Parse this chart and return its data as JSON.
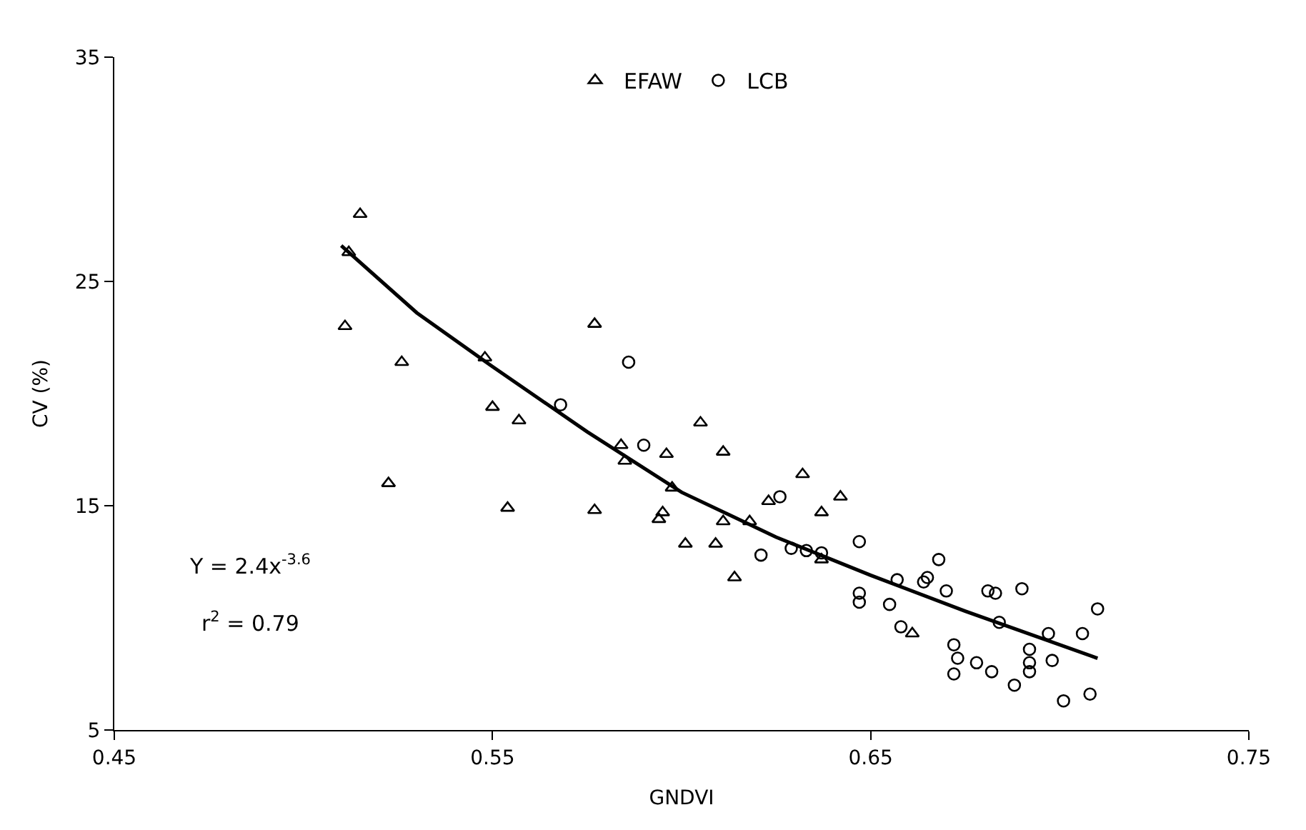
{
  "chart_data": {
    "type": "scatter",
    "xlabel": "GNDVI",
    "ylabel": "CV (%)",
    "xlim": [
      0.45,
      0.75
    ],
    "xticks": [
      0.45,
      0.55,
      0.65,
      0.75
    ],
    "ylim": [
      5,
      35
    ],
    "yticks": [
      5,
      15,
      25,
      35
    ],
    "legend": "top",
    "annotations": [
      "Y = 2.4x$^{-3.6}$",
      "r$^{2}$ = 0.79"
    ],
    "series": [
      {
        "name": "EFAW",
        "color": "#000000",
        "marker": "triangle",
        "x": [
          0.512,
          0.515,
          0.511,
          0.526,
          0.5225,
          0.548,
          0.55,
          0.557,
          0.554,
          0.577,
          0.577,
          0.584,
          0.585,
          0.596,
          0.605,
          0.611,
          0.5975,
          0.594,
          0.595,
          0.601,
          0.609,
          0.611,
          0.618,
          0.614,
          0.623,
          0.632,
          0.637,
          0.642,
          0.637,
          0.661
        ],
        "values": [
          26.3,
          28.0,
          23.0,
          21.4,
          16.0,
          21.6,
          19.4,
          18.8,
          14.9,
          23.1,
          14.8,
          17.7,
          17.0,
          17.3,
          18.7,
          17.4,
          15.8,
          14.4,
          14.7,
          13.3,
          13.3,
          14.3,
          14.3,
          11.8,
          15.2,
          16.4,
          14.7,
          15.4,
          12.6,
          9.3
        ]
      },
      {
        "name": "LCB",
        "color": "#000000",
        "marker": "circle",
        "x": [
          0.568,
          0.586,
          0.59,
          0.626,
          0.621,
          0.629,
          0.633,
          0.637,
          0.647,
          0.647,
          0.647,
          0.655,
          0.657,
          0.664,
          0.665,
          0.668,
          0.67,
          0.658,
          0.672,
          0.673,
          0.672,
          0.681,
          0.683,
          0.69,
          0.684,
          0.678,
          0.682,
          0.688,
          0.692,
          0.692,
          0.692,
          0.697,
          0.698,
          0.706,
          0.71,
          0.701,
          0.708
        ],
        "values": [
          19.5,
          21.4,
          17.7,
          15.4,
          12.8,
          13.1,
          13.0,
          12.9,
          13.4,
          11.1,
          10.7,
          10.6,
          11.7,
          11.6,
          11.8,
          12.6,
          11.2,
          9.6,
          8.8,
          8.2,
          7.5,
          11.2,
          11.1,
          11.3,
          9.8,
          8.0,
          7.6,
          7.0,
          8.0,
          7.6,
          8.6,
          9.3,
          8.1,
          9.3,
          10.4,
          6.3,
          6.6
        ]
      },
      {
        "type": "line",
        "color": "#000000",
        "line_style": "solid",
        "x": [
          0.51,
          0.53,
          0.55,
          0.575,
          0.6,
          0.625,
          0.65,
          0.675,
          0.71
        ],
        "values": [
          26.6,
          23.6,
          21.2,
          18.3,
          15.6,
          13.6,
          11.9,
          10.3,
          8.2
        ]
      }
    ]
  }
}
